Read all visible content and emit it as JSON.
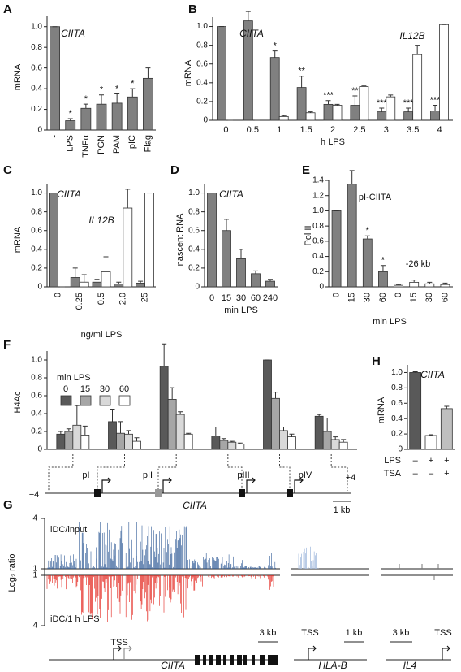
{
  "chart_data": [
    {
      "panel": "A",
      "type": "bar",
      "y_label": "mRNA",
      "categories": [
        "-",
        "LPS",
        "TNFα",
        "PGN",
        "PAM",
        "pIC",
        "Flag"
      ],
      "series": [
        {
          "name": "CIITA",
          "color": "#808080",
          "values": [
            1.0,
            0.09,
            0.21,
            0.25,
            0.26,
            0.32,
            0.5
          ],
          "errors": [
            0,
            0.02,
            0.04,
            0.09,
            0.09,
            0.08,
            0.1
          ],
          "significance": [
            null,
            "*",
            "*",
            "*",
            "*",
            "*",
            null
          ]
        }
      ],
      "ylim": [
        0,
        1.1
      ],
      "yticks": [
        0,
        0.2,
        0.4,
        0.6,
        0.8,
        {
          "value": 1,
          "label": "1.0"
        }
      ]
    },
    {
      "panel": "B",
      "type": "bar",
      "y_label": "mRNA",
      "x_label": "h LPS",
      "categories": [
        "0",
        "0.5",
        "1",
        "1.5",
        "2",
        "2.5",
        "3",
        "3.5",
        "4"
      ],
      "series": [
        {
          "name": "CIITA",
          "color": "#808080",
          "values": [
            1.0,
            1.06,
            0.67,
            0.35,
            0.17,
            0.16,
            0.09,
            0.09,
            0.1
          ],
          "errors": [
            0,
            0.1,
            0.07,
            0.12,
            0.04,
            0.1,
            0.04,
            0.04,
            0.06
          ],
          "significance": [
            null,
            null,
            "*",
            "**",
            "***",
            "**",
            "***",
            "***",
            "***"
          ]
        },
        {
          "name": "IL12B",
          "color": "#ffffff",
          "values": [
            0.0,
            0.0,
            0.04,
            0.08,
            0.16,
            0.36,
            0.25,
            0.7,
            1.02
          ],
          "errors": [
            0,
            0,
            0.01,
            0.01,
            0.01,
            0.01,
            0.02,
            0.1,
            0
          ]
        }
      ],
      "ylim": [
        0,
        1.1
      ],
      "yticks": [
        0,
        0.2,
        0.4,
        0.6,
        0.8,
        {
          "value": 1,
          "label": "1.0"
        }
      ]
    },
    {
      "panel": "C",
      "type": "bar",
      "y_label": "mRNA",
      "x_label": "ng/ml LPS",
      "categories": [
        "0",
        "0.25",
        "0.5",
        "2.0",
        "25"
      ],
      "series": [
        {
          "name": "CIITA",
          "color": "#808080",
          "values": [
            1.0,
            0.1,
            0.05,
            0.03,
            0.04
          ],
          "errors": [
            0,
            0.1,
            0.03,
            0.02,
            0.02
          ]
        },
        {
          "name": "IL12B",
          "color": "#ffffff",
          "values": [
            0.0,
            0.05,
            0.16,
            0.84,
            1.0
          ],
          "errors": [
            0,
            0.08,
            0.16,
            0.2,
            0
          ]
        }
      ],
      "ylim": [
        0,
        1.1
      ],
      "yticks": [
        0,
        0.2,
        0.4,
        0.6,
        0.8,
        {
          "value": 1,
          "label": "1.0"
        }
      ]
    },
    {
      "panel": "D",
      "type": "bar",
      "y_label": "nascent RNA",
      "x_label": "min LPS",
      "categories": [
        "0",
        "15",
        "30",
        "60",
        "240"
      ],
      "series": [
        {
          "name": "CIITA",
          "color": "#808080",
          "values": [
            1.0,
            0.6,
            0.3,
            0.14,
            0.06
          ],
          "errors": [
            0,
            0.12,
            0.1,
            0.03,
            0.02
          ]
        }
      ],
      "ylim": [
        0,
        1.1
      ],
      "yticks": [
        0,
        0.2,
        0.4,
        0.6,
        0.8,
        {
          "value": 1,
          "label": "1.0"
        }
      ]
    },
    {
      "panel": "E",
      "type": "bar",
      "y_label": "Pol II",
      "x_label": "min LPS",
      "categories": [
        "0",
        "15",
        "30",
        "60",
        "0",
        "15",
        "30",
        "60"
      ],
      "series": [
        {
          "name": "pI-CIITA",
          "color": "#808080",
          "values": [
            1.0,
            1.35,
            0.63,
            0.2,
            null,
            null,
            null,
            null
          ],
          "errors": [
            0,
            0.18,
            0.04,
            0.08,
            null,
            null,
            null,
            null
          ],
          "significance": [
            null,
            null,
            "*",
            "*",
            null,
            null,
            null,
            null
          ]
        },
        {
          "name": "-26 kb",
          "color": "#ffffff",
          "values": [
            null,
            null,
            null,
            null,
            0.02,
            0.06,
            0.04,
            0.03
          ],
          "errors": [
            null,
            null,
            null,
            null,
            0.01,
            0.03,
            0.02,
            0.02
          ]
        }
      ],
      "ylim": [
        0,
        1.4
      ],
      "yticks": [
        0,
        0.2,
        0.4,
        0.6,
        0.8,
        {
          "value": 1,
          "label": "1.0"
        },
        1.2,
        1.4
      ]
    },
    {
      "panel": "F",
      "type": "bar",
      "y_label": "H4Ac",
      "legend_title": "min LPS",
      "categories": [
        null,
        null,
        null,
        null,
        null,
        null
      ],
      "series": [
        {
          "name": "0",
          "color": "#595959",
          "values": [
            0.17,
            0.31,
            0.93,
            0.15,
            1.0,
            0.37
          ],
          "errors": [
            0.03,
            0.14,
            0.25,
            0.1,
            0,
            0.02
          ]
        },
        {
          "name": "15",
          "color": "#a6a6a6",
          "values": [
            0.2,
            0.18,
            0.56,
            0.1,
            0.57,
            0.2
          ],
          "errors": [
            0.03,
            0.13,
            0.13,
            0.02,
            0.07,
            0.15
          ]
        },
        {
          "name": "30",
          "color": "#d9d9d9",
          "values": [
            0.27,
            0.17,
            0.39,
            0.08,
            0.21,
            0.11
          ],
          "errors": [
            0.22,
            0.04,
            0.03,
            0.01,
            0.04,
            0.03
          ]
        },
        {
          "name": "60",
          "color": "#ffffff",
          "values": [
            0.16,
            0.09,
            0.17,
            0.06,
            0.14,
            0.08
          ],
          "errors": [
            0.1,
            0.04,
            0.01,
            0.01,
            0.03,
            0.03
          ]
        }
      ],
      "ylim": [
        0,
        1.1
      ],
      "yticks": [
        0,
        0.2,
        0.4,
        0.6,
        0.8,
        {
          "value": 1,
          "label": "1.0"
        }
      ],
      "gene_map": {
        "gene": "CIITA",
        "left": "−4",
        "right": "+4",
        "promoters": [
          "pI",
          "pII",
          "pIII",
          "pIV"
        ],
        "scale": "1 kb"
      }
    },
    {
      "panel": "H",
      "type": "bar",
      "y_label": "mRNA",
      "categories": [
        null,
        null,
        null
      ],
      "series": [
        {
          "name": "CIITA",
          "colors": [
            "#595959",
            "#ffffff",
            "#bfbfbf"
          ],
          "values": [
            1.0,
            0.18,
            0.53
          ],
          "errors": [
            0.01,
            0.01,
            0.03
          ]
        }
      ],
      "conditions": [
        {
          "name": "LPS",
          "values": [
            "–",
            "+",
            "+"
          ]
        },
        {
          "name": "TSA",
          "values": [
            "–",
            "–",
            "+"
          ]
        }
      ],
      "ylim": [
        0,
        1.1
      ],
      "yticks": [
        0,
        0.2,
        0.4,
        0.6,
        0.8,
        {
          "value": 1,
          "label": "1.0"
        }
      ]
    },
    {
      "panel": "G",
      "type": "track",
      "y_label": "Log₂ ratio",
      "tracks": [
        "iDC/input",
        "iDC/1 h LPS"
      ],
      "ylim": [
        1,
        4
      ],
      "yticks": [
        1,
        4
      ],
      "loci": [
        {
          "gene": "CIITA",
          "tss": "TSS",
          "scale": "3 kb"
        },
        {
          "gene": "HLA-B",
          "tss": "TSS",
          "scale": "1 kb"
        },
        {
          "gene": "IL4",
          "tss": "TSS",
          "scale": "3 kb"
        }
      ]
    }
  ]
}
